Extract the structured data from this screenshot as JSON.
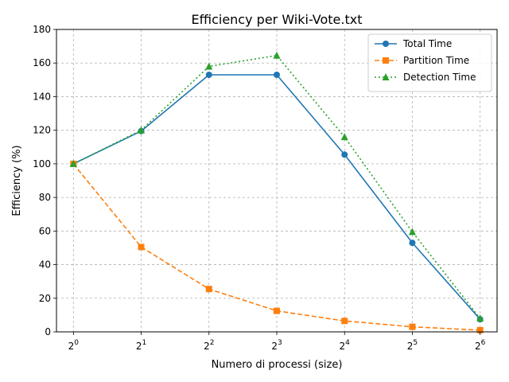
{
  "chart_data": {
    "type": "line",
    "title": "Efficiency per Wiki-Vote.txt",
    "xlabel": "Numero di processi (size)",
    "ylabel": "Efficiency (%)",
    "x_base": "2",
    "x": [
      0,
      1,
      2,
      3,
      4,
      5,
      6
    ],
    "x_tick_exponents": [
      "0",
      "1",
      "2",
      "3",
      "4",
      "5",
      "6"
    ],
    "ylim": [
      0,
      180
    ],
    "y_ticks": [
      "0",
      "20",
      "40",
      "60",
      "80",
      "100",
      "120",
      "140",
      "160",
      "180"
    ],
    "grid": true,
    "legend_position": "top-right",
    "series": [
      {
        "name": "Total Time",
        "color": "#1f77b4",
        "marker": "circle",
        "linestyle": "solid",
        "values": [
          100,
          119.5,
          153,
          153,
          105.5,
          53,
          7.5
        ]
      },
      {
        "name": "Partition Time",
        "color": "#ff7f0e",
        "marker": "square",
        "linestyle": "dashed",
        "values": [
          100,
          50.5,
          25.5,
          12.5,
          6.5,
          3,
          1
        ]
      },
      {
        "name": "Detection Time",
        "color": "#2ca02c",
        "marker": "triangle",
        "linestyle": "dotted",
        "values": [
          100,
          120,
          158,
          164.5,
          116,
          59.5,
          8
        ]
      }
    ]
  }
}
